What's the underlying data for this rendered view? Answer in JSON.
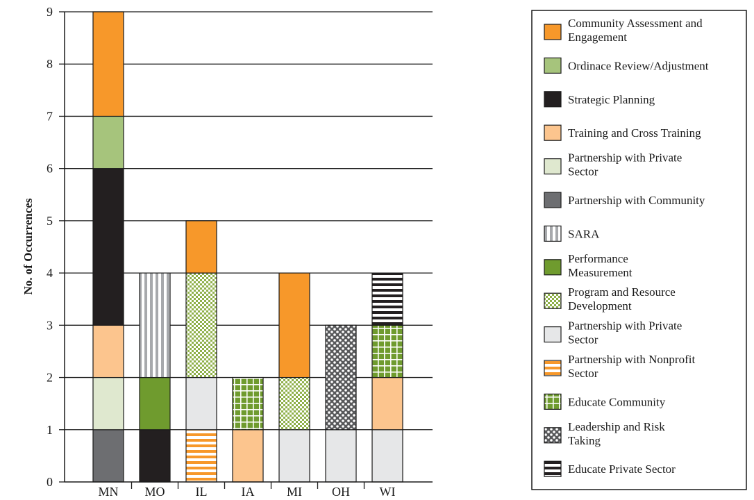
{
  "chart_data": {
    "type": "bar",
    "stacked": true,
    "title": "",
    "xlabel": "",
    "ylabel": "No. of Occurrences",
    "ylim": [
      0,
      9
    ],
    "yticks": [
      0,
      1,
      2,
      3,
      4,
      5,
      6,
      7,
      8,
      9
    ],
    "grid": "horizontal",
    "legend_position": "right",
    "categories": [
      "MN",
      "MO",
      "IL",
      "IA",
      "MI",
      "OH",
      "WI"
    ],
    "legend": [
      {
        "key": "cae",
        "lines": [
          "Community Assessment and",
          "Engagement"
        ],
        "color": "#f7982a",
        "pattern": "solid"
      },
      {
        "key": "ora",
        "lines": [
          "Ordinace Review/Adjustment"
        ],
        "color": "#a6c47c",
        "pattern": "solid"
      },
      {
        "key": "sp",
        "lines": [
          "Strategic Planning"
        ],
        "color": "#231f20",
        "pattern": "solid"
      },
      {
        "key": "tct",
        "lines": [
          "Training and Cross Training"
        ],
        "color": "#fcc58e",
        "pattern": "solid"
      },
      {
        "key": "pps1",
        "lines": [
          "Partnership with Private",
          "Sector"
        ],
        "color": "#dfe8cf",
        "pattern": "solid"
      },
      {
        "key": "pc",
        "lines": [
          "Partnership with Community"
        ],
        "color": "#6d6e71",
        "pattern": "solid"
      },
      {
        "key": "sara",
        "lines": [
          "SARA"
        ],
        "color": "#a7a9ac",
        "pattern": "vstripes"
      },
      {
        "key": "pm",
        "lines": [
          "Performance",
          "Measurement"
        ],
        "color": "#6f9b2e",
        "pattern": "solid"
      },
      {
        "key": "prd",
        "lines": [
          "Program and Resource",
          "Development"
        ],
        "color": "#8fb04a",
        "pattern": "checker"
      },
      {
        "key": "pps2",
        "lines": [
          "Partnership with Private",
          "Sector"
        ],
        "color": "#e6e7e8",
        "pattern": "solid"
      },
      {
        "key": "pns",
        "lines": [
          "Partnership with Nonprofit",
          "Sector"
        ],
        "color": "#f7982a",
        "pattern": "hstripes"
      },
      {
        "key": "ec",
        "lines": [
          "Educate Community"
        ],
        "color": "#6f9b2e",
        "pattern": "grid"
      },
      {
        "key": "lrt",
        "lines": [
          "Leadership and Risk",
          "Taking"
        ],
        "color": "#58595b",
        "pattern": "dots"
      },
      {
        "key": "eps",
        "lines": [
          "Educate Private Sector"
        ],
        "color": "#231f20",
        "pattern": "hstripes"
      }
    ],
    "stacks": [
      {
        "category": "MN",
        "segments": [
          {
            "key": "pc",
            "value": 1
          },
          {
            "key": "pps1",
            "value": 1
          },
          {
            "key": "tct",
            "value": 1
          },
          {
            "key": "sp",
            "value": 3
          },
          {
            "key": "ora",
            "value": 1
          },
          {
            "key": "cae",
            "value": 2
          }
        ]
      },
      {
        "category": "MO",
        "segments": [
          {
            "key": "sp",
            "value": 1
          },
          {
            "key": "pm",
            "value": 1
          },
          {
            "key": "sara",
            "value": 2
          }
        ]
      },
      {
        "category": "IL",
        "segments": [
          {
            "key": "pns",
            "value": 1
          },
          {
            "key": "pps2",
            "value": 1
          },
          {
            "key": "prd",
            "value": 2
          },
          {
            "key": "cae",
            "value": 1
          }
        ]
      },
      {
        "category": "IA",
        "segments": [
          {
            "key": "tct",
            "value": 1
          },
          {
            "key": "ec",
            "value": 1
          }
        ]
      },
      {
        "category": "MI",
        "segments": [
          {
            "key": "pps2",
            "value": 1
          },
          {
            "key": "prd",
            "value": 1
          },
          {
            "key": "cae",
            "value": 2
          }
        ]
      },
      {
        "category": "OH",
        "segments": [
          {
            "key": "pps2",
            "value": 1
          },
          {
            "key": "lrt",
            "value": 2
          }
        ]
      },
      {
        "category": "WI",
        "segments": [
          {
            "key": "pps2",
            "value": 1
          },
          {
            "key": "tct",
            "value": 1
          },
          {
            "key": "ec",
            "value": 1
          },
          {
            "key": "eps",
            "value": 1
          }
        ]
      }
    ]
  }
}
